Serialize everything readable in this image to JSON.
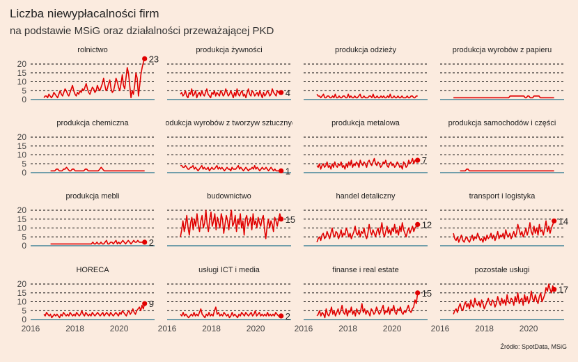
{
  "title": "Liczba niewypłacalności firm",
  "subtitle": "na podstawie MSiG oraz działalności przeważającej PKD",
  "source": "Źródło: SpotData, MSiG",
  "colors": {
    "background": "#fbebdf",
    "line": "#e00000",
    "grid": "#000000",
    "zero_line": "#1f6f8b"
  },
  "chart_data": {
    "type": "line",
    "facet_layout": "4x4 small multiples, shared axes",
    "x_range": [
      2016,
      2021.6
    ],
    "x_ticks": [
      "2016",
      "2018",
      "2020"
    ],
    "y_range": [
      0,
      23
    ],
    "y_ticks": [
      "0",
      "5",
      "10",
      "15",
      "20"
    ],
    "panels": [
      {
        "name": "rolnictwo",
        "start": 2016.6,
        "end_value": 23,
        "end_label": "23",
        "values": [
          1,
          2,
          2,
          1,
          3,
          2,
          1,
          2,
          4,
          3,
          2,
          1,
          3,
          5,
          3,
          2,
          4,
          6,
          5,
          3,
          2,
          4,
          6,
          8,
          5,
          3,
          2,
          4,
          3,
          5,
          4,
          6,
          5,
          7,
          9,
          6,
          4,
          3,
          5,
          7,
          6,
          4,
          5,
          8,
          6,
          5,
          7,
          9,
          12,
          8,
          5,
          6,
          9,
          11,
          6,
          4,
          5,
          8,
          12,
          10,
          7,
          5,
          9,
          14,
          8,
          6,
          12,
          18,
          15,
          8,
          1,
          5,
          3,
          8,
          15,
          12,
          2,
          8,
          14,
          18,
          21,
          23
        ]
      },
      {
        "name": "produkcja żywności",
        "start": 2016.6,
        "end_value": 4,
        "end_label": "4",
        "values": [
          3,
          4,
          2,
          3,
          5,
          2,
          1,
          4,
          3,
          6,
          2,
          3,
          5,
          1,
          3,
          4,
          2,
          5,
          3,
          2,
          4,
          6,
          3,
          2,
          1,
          4,
          3,
          5,
          2,
          4,
          3,
          2,
          5,
          4,
          2,
          3,
          6,
          4,
          2,
          3,
          5,
          3,
          1,
          4,
          2,
          6,
          3,
          2,
          4,
          5,
          2,
          3,
          1,
          4,
          6,
          3,
          2,
          5,
          4,
          2,
          3,
          4,
          2,
          5,
          3,
          1,
          4,
          2,
          3,
          5,
          4,
          2,
          3,
          6,
          4,
          3,
          2,
          5,
          4,
          3,
          4
        ]
      },
      {
        "name": "produkcja odzieży",
        "start": 2016.6,
        "end_value": null,
        "end_label": "",
        "values": [
          3,
          2,
          2,
          1,
          2,
          3,
          1,
          1,
          2,
          2,
          1,
          1,
          2,
          1,
          3,
          1,
          1,
          2,
          1,
          1,
          2,
          2,
          1,
          1,
          3,
          1,
          2,
          1,
          1,
          2,
          1,
          1,
          2,
          3,
          1,
          1,
          2,
          1,
          1,
          1,
          2,
          2,
          1,
          3,
          1,
          1,
          2,
          1,
          1,
          2,
          1,
          2,
          1,
          1,
          2,
          1,
          3,
          1,
          1,
          2,
          1,
          1,
          2,
          1,
          1,
          2,
          1,
          1,
          1,
          2,
          1,
          1,
          2,
          2,
          1,
          1,
          2,
          2
        ]
      },
      {
        "name": "produkcja wyrobów z papieru",
        "start": 2016.6,
        "end_value": null,
        "end_label": "",
        "values": [
          1,
          1,
          1,
          1,
          1,
          1,
          1,
          1,
          1,
          1,
          1,
          1,
          1,
          1,
          1,
          1,
          1,
          1,
          1,
          1,
          1,
          1,
          1,
          1,
          1,
          1,
          1,
          1,
          1,
          1,
          1,
          1,
          1,
          1,
          1,
          1,
          1,
          1,
          1,
          1,
          1,
          1,
          1,
          1,
          1,
          2,
          2,
          2,
          2,
          2,
          2,
          2,
          2,
          2,
          2,
          2,
          2,
          1,
          1,
          2,
          2,
          1,
          1,
          1,
          2,
          2,
          2,
          2,
          2,
          1,
          1,
          1,
          1,
          1,
          1,
          1,
          1,
          1,
          1,
          1,
          1
        ]
      },
      {
        "name": "produkcja chemiczna",
        "start": 2016.9,
        "end_value": null,
        "end_label": "",
        "values": [
          1,
          1,
          1,
          1,
          2,
          2,
          1,
          1,
          1,
          2,
          2,
          3,
          2,
          1,
          1,
          2,
          2,
          1,
          1,
          1,
          1,
          1,
          1,
          1,
          2,
          2,
          1,
          1,
          1,
          1,
          1,
          1,
          1,
          1,
          2,
          3,
          2,
          1,
          1,
          1,
          1,
          1,
          1,
          1,
          1,
          1,
          1,
          1,
          1,
          1,
          1,
          1,
          1,
          1,
          1,
          1,
          1,
          1,
          1,
          1,
          1,
          1,
          1,
          1,
          1,
          1
        ]
      },
      {
        "name": "produkcja wyrobów z tworzyw sztucznych",
        "start": 2016.6,
        "end_value": 1,
        "end_label": "1",
        "values": [
          4,
          4,
          3,
          3,
          4,
          3,
          2,
          2,
          3,
          3,
          4,
          2,
          3,
          2,
          1,
          2,
          3,
          4,
          2,
          3,
          2,
          2,
          3,
          1,
          2,
          3,
          2,
          2,
          3,
          4,
          2,
          3,
          2,
          3,
          2,
          1,
          2,
          3,
          2,
          2,
          1,
          3,
          2,
          2,
          2,
          3,
          4,
          2,
          3,
          2,
          1,
          2,
          3,
          2,
          1,
          2,
          2,
          3,
          2,
          4,
          2,
          3,
          2,
          1,
          2,
          3,
          2,
          2,
          3,
          2,
          1,
          2,
          3,
          2,
          1,
          2,
          1,
          1,
          1,
          1,
          1
        ]
      },
      {
        "name": "produkcja metalowa",
        "start": 2016.6,
        "end_value": 7,
        "end_label": "7",
        "values": [
          4,
          3,
          5,
          2,
          4,
          5,
          3,
          4,
          6,
          3,
          4,
          2,
          5,
          3,
          6,
          4,
          3,
          5,
          4,
          6,
          3,
          4,
          2,
          5,
          3,
          6,
          4,
          7,
          3,
          5,
          4,
          6,
          5,
          3,
          7,
          5,
          4,
          6,
          5,
          3,
          6,
          7,
          5,
          4,
          6,
          8,
          5,
          4,
          6,
          5,
          3,
          4,
          6,
          5,
          7,
          4,
          3,
          5,
          6,
          4,
          5,
          3,
          4,
          6,
          5,
          3,
          4,
          2,
          6,
          5,
          3,
          4,
          7,
          5,
          6,
          8,
          5,
          7,
          6,
          7
        ]
      },
      {
        "name": "produkcja samochodów i części",
        "start": 2016.9,
        "end_value": null,
        "end_label": "",
        "values": [
          1,
          1,
          1,
          1,
          1,
          2,
          2,
          1,
          1,
          1,
          1,
          1,
          1,
          1,
          1,
          1,
          1,
          1,
          1,
          1,
          1,
          1,
          1,
          1,
          1,
          1,
          1,
          1,
          1,
          1,
          1,
          1,
          1,
          1,
          1,
          1,
          1,
          1,
          1,
          1,
          1,
          1,
          1,
          1,
          1,
          1,
          1,
          1,
          1,
          1,
          1,
          1,
          1,
          1,
          1,
          1,
          1,
          1,
          1,
          1,
          1,
          1,
          1,
          1,
          1,
          1,
          1,
          1,
          1,
          1,
          1,
          1
        ]
      },
      {
        "name": "produkcja mebli",
        "start": 2016.9,
        "end_value": 2,
        "end_label": "2",
        "values": [
          1,
          1,
          1,
          1,
          1,
          1,
          1,
          1,
          1,
          1,
          1,
          1,
          1,
          1,
          1,
          1,
          1,
          1,
          1,
          1,
          1,
          1,
          1,
          1,
          1,
          1,
          1,
          1,
          1,
          1,
          1,
          2,
          1,
          1,
          2,
          1,
          1,
          2,
          1,
          1,
          2,
          3,
          1,
          1,
          2,
          2,
          1,
          2,
          3,
          1,
          2,
          1,
          2,
          3,
          2,
          1,
          2,
          3,
          2,
          1,
          2,
          3,
          2,
          2,
          3,
          2,
          2,
          2,
          2,
          2
        ]
      },
      {
        "name": "budownictwo",
        "start": 2016.6,
        "end_value": 15,
        "end_label": "15",
        "values": [
          5,
          9,
          14,
          8,
          12,
          17,
          10,
          6,
          13,
          16,
          9,
          15,
          11,
          18,
          12,
          8,
          14,
          17,
          10,
          13,
          20,
          12,
          8,
          15,
          19,
          11,
          14,
          18,
          9,
          16,
          13,
          10,
          18,
          15,
          7,
          12,
          17,
          14,
          9,
          16,
          20,
          11,
          13,
          17,
          8,
          15,
          12,
          18,
          10,
          14,
          6,
          15,
          17,
          11,
          13,
          16,
          9,
          18,
          12,
          14,
          10,
          16,
          13,
          11,
          15,
          17,
          9,
          4,
          11,
          15,
          10,
          14,
          12,
          8,
          16,
          14,
          11,
          15,
          18,
          15
        ]
      },
      {
        "name": "handel detaliczny",
        "start": 2016.6,
        "end_value": 12,
        "end_label": "12",
        "values": [
          2,
          4,
          5,
          3,
          6,
          7,
          4,
          5,
          8,
          6,
          4,
          7,
          10,
          6,
          5,
          8,
          7,
          4,
          6,
          9,
          5,
          7,
          6,
          10,
          8,
          5,
          7,
          4,
          6,
          8,
          11,
          7,
          6,
          9,
          5,
          8,
          7,
          10,
          6,
          4,
          7,
          12,
          8,
          6,
          9,
          7,
          5,
          8,
          10,
          6,
          9,
          13,
          7,
          5,
          8,
          11,
          7,
          9,
          6,
          10,
          8,
          12,
          7,
          9,
          6,
          11,
          8,
          13,
          9,
          7,
          5,
          8,
          10,
          7,
          9,
          11,
          8,
          10,
          11,
          12
        ]
      },
      {
        "name": "transport i logistyka",
        "start": 2016.6,
        "end_value": 14,
        "end_label": "14",
        "values": [
          7,
          4,
          3,
          5,
          2,
          4,
          6,
          3,
          2,
          4,
          5,
          3,
          2,
          4,
          6,
          3,
          5,
          4,
          7,
          5,
          3,
          4,
          2,
          5,
          3,
          6,
          4,
          5,
          7,
          4,
          6,
          3,
          5,
          8,
          4,
          6,
          5,
          7,
          4,
          9,
          6,
          5,
          7,
          4,
          6,
          8,
          5,
          7,
          12,
          9,
          6,
          8,
          5,
          7,
          10,
          6,
          9,
          13,
          8,
          6,
          11,
          7,
          10,
          6,
          12,
          8,
          9,
          6,
          10,
          14,
          8,
          11,
          7,
          10,
          12,
          14
        ]
      },
      {
        "name": "HORECA",
        "start": 2016.6,
        "end_value": 9,
        "end_label": "9",
        "values": [
          3,
          2,
          4,
          3,
          2,
          3,
          1,
          2,
          3,
          2,
          3,
          2,
          1,
          3,
          2,
          4,
          3,
          2,
          3,
          2,
          4,
          3,
          2,
          3,
          2,
          4,
          3,
          2,
          3,
          5,
          3,
          2,
          4,
          3,
          2,
          3,
          2,
          4,
          3,
          2,
          3,
          4,
          3,
          2,
          3,
          4,
          2,
          3,
          4,
          3,
          2,
          4,
          3,
          2,
          3,
          4,
          3,
          2,
          4,
          3,
          5,
          4,
          3,
          2,
          4,
          5,
          3,
          4,
          6,
          4,
          3,
          5,
          6,
          7,
          5,
          8,
          6,
          9
        ]
      },
      {
        "name": "usługi ICT i media",
        "start": 2016.6,
        "end_value": 2,
        "end_label": "2",
        "values": [
          3,
          2,
          4,
          2,
          3,
          2,
          1,
          2,
          3,
          2,
          4,
          2,
          3,
          2,
          4,
          6,
          3,
          2,
          1,
          3,
          2,
          4,
          2,
          3,
          2,
          5,
          7,
          3,
          4,
          2,
          3,
          2,
          4,
          3,
          2,
          3,
          1,
          2,
          4,
          2,
          3,
          2,
          1,
          3,
          2,
          4,
          3,
          2,
          4,
          3,
          2,
          3,
          4,
          2,
          3,
          5,
          2,
          3,
          4,
          2,
          3,
          2,
          3,
          2,
          4,
          2,
          3,
          2,
          3,
          2,
          4,
          3,
          2,
          2,
          2
        ]
      },
      {
        "name": "finanse i real estate",
        "start": 2016.6,
        "end_value": 15,
        "end_label": "15",
        "values": [
          2,
          3,
          5,
          2,
          4,
          3,
          1,
          6,
          3,
          2,
          4,
          7,
          3,
          5,
          2,
          4,
          6,
          3,
          5,
          8,
          4,
          3,
          6,
          2,
          5,
          4,
          7,
          3,
          5,
          2,
          6,
          4,
          3,
          5,
          9,
          4,
          6,
          3,
          5,
          4,
          2,
          6,
          5,
          3,
          4,
          7,
          5,
          3,
          4,
          6,
          8,
          3,
          5,
          4,
          7,
          3,
          6,
          5,
          8,
          4,
          3,
          6,
          5,
          7,
          4,
          3,
          5,
          4,
          6,
          8,
          5,
          4,
          6,
          7,
          11,
          9,
          15
        ]
      },
      {
        "name": "pozostałe usługi",
        "start": 2016.6,
        "end_value": 17,
        "end_label": "17",
        "values": [
          3,
          5,
          6,
          4,
          7,
          9,
          6,
          5,
          8,
          10,
          7,
          9,
          6,
          11,
          8,
          7,
          12,
          9,
          8,
          10,
          7,
          11,
          9,
          6,
          8,
          10,
          12,
          9,
          8,
          11,
          10,
          7,
          9,
          13,
          10,
          8,
          12,
          9,
          11,
          8,
          14,
          10,
          9,
          12,
          11,
          8,
          13,
          10,
          15,
          9,
          11,
          12,
          8,
          14,
          10,
          13,
          9,
          11,
          16,
          12,
          10,
          14,
          11,
          9,
          13,
          15,
          10,
          12,
          14,
          18,
          16,
          20,
          17,
          15,
          19,
          17
        ]
      }
    ]
  }
}
